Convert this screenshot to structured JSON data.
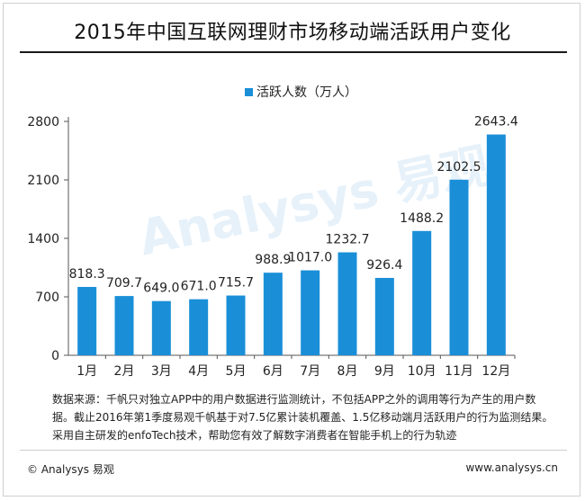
{
  "title": "2015年中国互联网理财市场移动端活跃用户变化",
  "watermark": "Analysys 易观",
  "source_note": "数据来源：千帆只对独立APP中的用户数据进行监测统计，不包括APP之外的调用等行为产生的用户数据。截止2016年第1季度易观千帆基于对7.5亿累计装机覆盖、1.5亿移动端月活跃用户的行为监测结果。采用自主研发的enfoTech技术，帮助您有效了解数字消费者在智能手机上的行为轨迹",
  "footer": {
    "copyright": "© Analysys 易观",
    "url": "www.analysys.cn"
  },
  "colors": {
    "bar": "#1a8fd8",
    "axis": "#555555"
  },
  "chart_data": {
    "type": "bar",
    "title": "2015年中国互联网理财市场移动端活跃用户变化",
    "categories": [
      "1月",
      "2月",
      "3月",
      "4月",
      "5月",
      "6月",
      "7月",
      "8月",
      "9月",
      "10月",
      "11月",
      "12月"
    ],
    "series": [
      {
        "name": "活跃人数（万人）",
        "values": [
          818.3,
          709.7,
          649.0,
          671.0,
          715.7,
          988.9,
          1017.0,
          1232.7,
          926.4,
          1488.2,
          2102.5,
          2643.4
        ],
        "labels": [
          "818.3",
          "709.7",
          "649.0",
          "671.0",
          "715.7",
          "988.9",
          "1017.0",
          "1232.7",
          "926.4",
          "1488.2",
          "2102.5",
          "2643.4"
        ]
      }
    ],
    "yticks": [
      0,
      700,
      1400,
      2100,
      2800
    ],
    "ylim": [
      0,
      2800
    ],
    "legend_position": "top-center",
    "grid": false
  }
}
